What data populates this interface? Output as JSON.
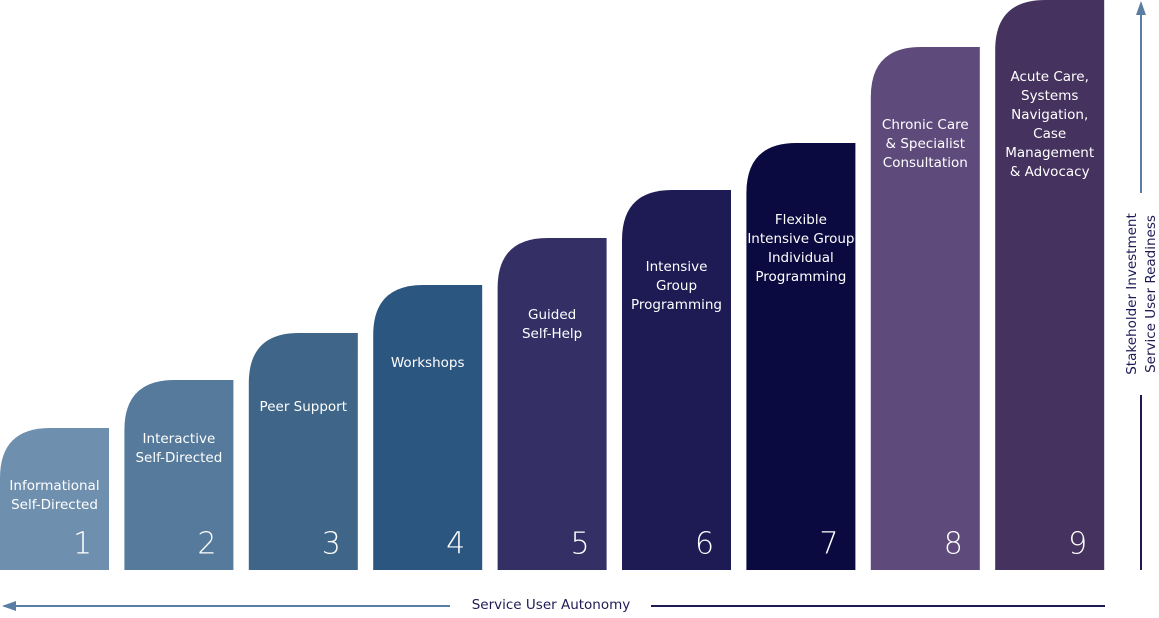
{
  "steps": [
    {
      "label": [
        "Informational",
        "Self-Directed"
      ],
      "number": 1,
      "color": "#6f8fae"
    },
    {
      "label": [
        "Interactive",
        "Self-Directed"
      ],
      "number": 2,
      "color": "#557a9b"
    },
    {
      "label": [
        "Peer Support"
      ],
      "number": 3,
      "color": "#3f6688"
    },
    {
      "label": [
        "Workshops"
      ],
      "number": 4,
      "color": "#2b567f"
    },
    {
      "label": [
        "Guided",
        "Self-Help"
      ],
      "number": 5,
      "color": "#343066"
    },
    {
      "label": [
        "Intensive",
        "Group",
        "Programming"
      ],
      "number": 6,
      "color": "#1e1b54"
    },
    {
      "label": [
        "Flexible",
        "Intensive Group",
        "Individual",
        "Programming"
      ],
      "number": 7,
      "color": "#0b0a40"
    },
    {
      "label": [
        "Chronic Care",
        "& Specialist",
        "Consultation"
      ],
      "number": 8,
      "color": "#5e4b7c"
    },
    {
      "label": [
        "Acute Care,",
        "Systems",
        "Navigation,",
        "Case",
        "Management",
        "& Advocacy"
      ],
      "number": 9,
      "color": "#45325f"
    }
  ],
  "vertical_axis": [
    "Stakeholder Investment",
    "Service User Readiness"
  ],
  "horizontal_axis": "Service User Autonomy"
}
